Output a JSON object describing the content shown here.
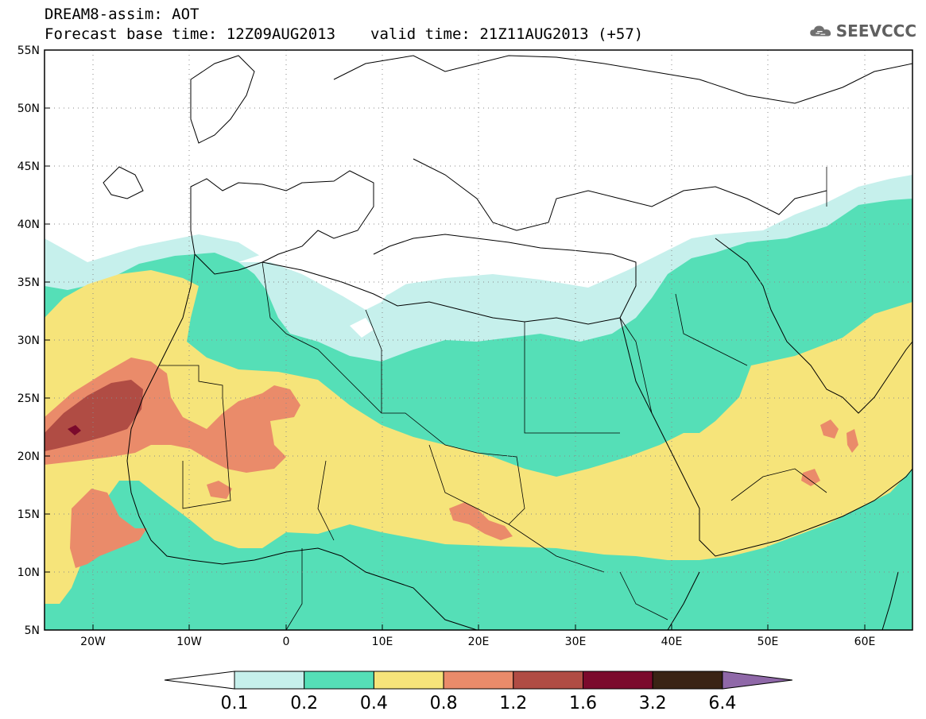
{
  "header": {
    "line1": "DREAM8-assim: AOT",
    "base_time": "Forecast base time: 12Z09AUG2013",
    "valid_time": "valid time: 21Z11AUG2013 (+57)"
  },
  "logo": {
    "text": "SEEVCCC",
    "icon": "cloud-icon"
  },
  "map": {
    "lat_labels": [
      "55N",
      "50N",
      "45N",
      "40N",
      "35N",
      "30N",
      "25N",
      "20N",
      "15N",
      "10N",
      "5N"
    ],
    "lon_labels": [
      "20W",
      "10W",
      "0",
      "10E",
      "20E",
      "30E",
      "40E",
      "50E",
      "60E"
    ]
  },
  "colorbar": {
    "levels": [
      "0.1",
      "0.2",
      "0.4",
      "0.8",
      "1.2",
      "1.6",
      "3.2",
      "6.4"
    ],
    "colors": [
      "#ffffff",
      "#c6f0ec",
      "#55dfb7",
      "#f6e47a",
      "#ea8b6a",
      "#b04c44",
      "#7b0a2c",
      "#3a2415",
      "#8f68a8"
    ]
  },
  "fields": {
    "c02": "#c6f0ec",
    "c04": "#55dfb7",
    "c08": "#f6e47a",
    "c12": "#ea8b6a",
    "c16": "#b04c44",
    "c32": "#7b0a2c"
  }
}
